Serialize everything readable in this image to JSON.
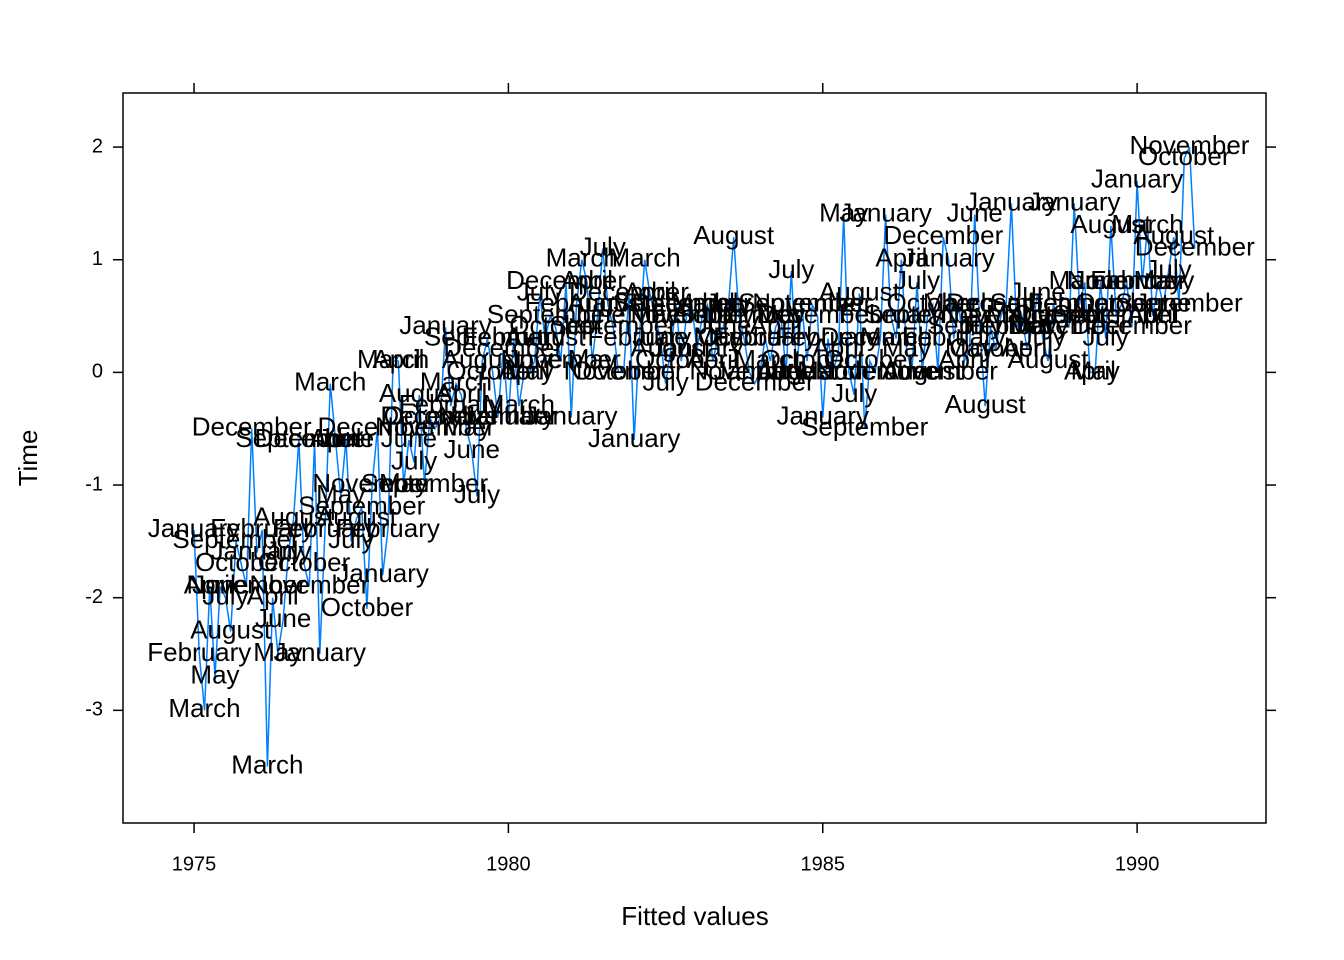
{
  "chart_data": {
    "type": "line",
    "xlabel": "Fitted values",
    "ylabel": "Time",
    "xlim": [
      1973.87,
      1992.05
    ],
    "ylim": [
      -4.0,
      2.48
    ],
    "xticks": [
      1975,
      1980,
      1985,
      1990
    ],
    "yticks": [
      -3,
      -2,
      -1,
      0,
      1,
      2
    ],
    "x": [
      1975,
      1975.083,
      1975.167,
      1975.25,
      1975.333,
      1975.417,
      1975.5,
      1975.583,
      1975.667,
      1975.75,
      1975.833,
      1975.917,
      1976,
      1976.083,
      1976.167,
      1976.25,
      1976.333,
      1976.417,
      1976.5,
      1976.583,
      1976.667,
      1976.75,
      1976.833,
      1976.917,
      1977,
      1977.083,
      1977.167,
      1977.25,
      1977.333,
      1977.417,
      1977.5,
      1977.583,
      1977.667,
      1977.75,
      1977.833,
      1977.917,
      1978,
      1978.083,
      1978.167,
      1978.25,
      1978.333,
      1978.417,
      1978.5,
      1978.583,
      1978.667,
      1978.75,
      1978.833,
      1978.917,
      1979,
      1979.083,
      1979.167,
      1979.25,
      1979.333,
      1979.417,
      1979.5,
      1979.583,
      1979.667,
      1979.75,
      1979.833,
      1979.917,
      1980,
      1980.083,
      1980.167,
      1980.25,
      1980.333,
      1980.417,
      1980.5,
      1980.583,
      1980.667,
      1980.75,
      1980.833,
      1980.917,
      1981,
      1981.083,
      1981.167,
      1981.25,
      1981.333,
      1981.417,
      1981.5,
      1981.583,
      1981.667,
      1981.75,
      1981.833,
      1981.917,
      1982,
      1982.083,
      1982.167,
      1982.25,
      1982.333,
      1982.417,
      1982.5,
      1982.583,
      1982.667,
      1982.75,
      1982.833,
      1982.917,
      1983,
      1983.083,
      1983.167,
      1983.25,
      1983.333,
      1983.417,
      1983.5,
      1983.583,
      1983.667,
      1983.75,
      1983.833,
      1983.917,
      1984,
      1984.083,
      1984.167,
      1984.25,
      1984.333,
      1984.417,
      1984.5,
      1984.583,
      1984.667,
      1984.75,
      1984.833,
      1984.917,
      1985,
      1985.083,
      1985.167,
      1985.25,
      1985.333,
      1985.417,
      1985.5,
      1985.583,
      1985.667,
      1985.75,
      1985.833,
      1985.917,
      1986,
      1986.083,
      1986.167,
      1986.25,
      1986.333,
      1986.417,
      1986.5,
      1986.583,
      1986.667,
      1986.75,
      1986.833,
      1986.917,
      1987,
      1987.083,
      1987.167,
      1987.25,
      1987.333,
      1987.417,
      1987.5,
      1987.583,
      1987.667,
      1987.75,
      1987.833,
      1987.917,
      1988,
      1988.083,
      1988.167,
      1988.25,
      1988.333,
      1988.417,
      1988.5,
      1988.583,
      1988.667,
      1988.75,
      1988.833,
      1988.917,
      1989,
      1989.083,
      1989.167,
      1989.25,
      1989.333,
      1989.417,
      1989.5,
      1989.583,
      1989.667,
      1989.75,
      1989.833,
      1989.917,
      1990,
      1990.083,
      1990.167,
      1990.25,
      1990.333,
      1990.417,
      1990.5,
      1990.583,
      1990.667,
      1990.75,
      1990.833,
      1990.917
    ],
    "series": [
      {
        "color": "#0080ff",
        "values": [
          -1.4,
          -2.5,
          -3.0,
          -1.9,
          -2.7,
          -1.9,
          -2.0,
          -2.3,
          -1.5,
          -1.7,
          -1.9,
          -0.5,
          -1.6,
          -1.4,
          -3.5,
          -2.0,
          -2.5,
          -2.2,
          -1.6,
          -1.3,
          -0.6,
          -1.7,
          -1.9,
          -0.6,
          -2.5,
          -1.4,
          -0.1,
          -0.6,
          -1.1,
          -0.6,
          -1.5,
          -1.3,
          -1.2,
          -2.1,
          -1.0,
          -0.5,
          -1.8,
          -1.4,
          0.1,
          0.1,
          -1.0,
          -0.6,
          -0.8,
          -0.2,
          -1.0,
          -0.4,
          -0.5,
          -0.4,
          0.4,
          -0.3,
          -0.1,
          -0.2,
          -0.5,
          -0.7,
          -1.1,
          0.1,
          0.3,
          0.0,
          -0.4,
          0.2,
          -0.4,
          0.3,
          -0.3,
          0.0,
          0.0,
          0.1,
          0.7,
          0.3,
          0.5,
          0.4,
          0.1,
          0.8,
          -0.4,
          0.6,
          1.0,
          0.8,
          0.1,
          0.5,
          1.1,
          0.6,
          0.4,
          0.0,
          0.0,
          0.7,
          -0.6,
          0.3,
          1.0,
          0.7,
          0.5,
          0.3,
          -0.1,
          0.2,
          0.6,
          0.1,
          0.5,
          0.6,
          0.2,
          0.5,
          0.6,
          0.1,
          0.3,
          0.4,
          0.6,
          1.2,
          0.5,
          0.3,
          0.0,
          -0.1,
          0.0,
          0.3,
          0.1,
          0.4,
          0.5,
          0.0,
          0.9,
          0.0,
          0.6,
          0.1,
          0.6,
          0.5,
          -0.4,
          0.3,
          0.0,
          0.2,
          1.4,
          0.0,
          -0.2,
          0.7,
          -0.5,
          0.1,
          0.0,
          0.3,
          1.4,
          0.5,
          0.3,
          1.0,
          0.2,
          0.0,
          0.8,
          0.0,
          0.5,
          0.6,
          0.0,
          1.2,
          1.0,
          0.3,
          0.6,
          0.1,
          0.2,
          1.4,
          0.4,
          -0.3,
          0.4,
          0.2,
          0.5,
          0.6,
          1.5,
          0.4,
          0.5,
          0.2,
          0.4,
          0.7,
          0.3,
          0.1,
          0.6,
          0.5,
          0.5,
          0.4,
          1.5,
          0.6,
          0.8,
          0.0,
          0.0,
          0.8,
          0.3,
          1.3,
          0.5,
          0.6,
          0.8,
          0.4,
          1.7,
          0.8,
          1.3,
          0.5,
          0.8,
          0.6,
          0.9,
          1.2,
          0.6,
          1.9,
          2.0,
          1.1
        ]
      }
    ],
    "point_labels": [
      "January",
      "February",
      "March",
      "April",
      "May",
      "June",
      "July",
      "August",
      "September",
      "October",
      "November",
      "December",
      "January",
      "February",
      "March",
      "April",
      "May",
      "June",
      "July",
      "August",
      "September",
      "October",
      "November",
      "December",
      "January",
      "February",
      "March",
      "April",
      "May",
      "June",
      "July",
      "August",
      "September",
      "October",
      "November",
      "December",
      "January",
      "February",
      "March",
      "April",
      "May",
      "June",
      "July",
      "August",
      "September",
      "October",
      "November",
      "December",
      "January",
      "February",
      "March",
      "April",
      "May",
      "June",
      "July",
      "August",
      "September",
      "October",
      "November",
      "December",
      "January",
      "February",
      "March",
      "April",
      "May",
      "June",
      "July",
      "August",
      "September",
      "October",
      "November",
      "December",
      "January",
      "February",
      "March",
      "April",
      "May",
      "June",
      "July",
      "August",
      "September",
      "October",
      "November",
      "December",
      "January",
      "February",
      "March",
      "April",
      "May",
      "June",
      "July",
      "August",
      "September",
      "October",
      "November",
      "December",
      "January",
      "February",
      "March",
      "April",
      "May",
      "June",
      "July",
      "August",
      "September",
      "October",
      "November",
      "December",
      "January",
      "February",
      "March",
      "April",
      "May",
      "June",
      "July",
      "August",
      "September",
      "October",
      "November",
      "December",
      "January",
      "February",
      "March",
      "April",
      "May",
      "June",
      "July",
      "August",
      "September",
      "October",
      "November",
      "December",
      "January",
      "February",
      "March",
      "April",
      "May",
      "June",
      "July",
      "August",
      "September",
      "October",
      "November",
      "December",
      "January",
      "February",
      "March",
      "April",
      "May",
      "June",
      "July",
      "August",
      "September",
      "October",
      "November",
      "December",
      "January",
      "February",
      "March",
      "April",
      "May",
      "June",
      "July",
      "August",
      "September",
      "October",
      "November",
      "December",
      "January",
      "February",
      "March",
      "April",
      "May",
      "June",
      "July",
      "August",
      "September",
      "October",
      "November",
      "December",
      "January",
      "February",
      "March",
      "April",
      "May",
      "June",
      "July",
      "August",
      "September",
      "October",
      "November",
      "December"
    ]
  }
}
